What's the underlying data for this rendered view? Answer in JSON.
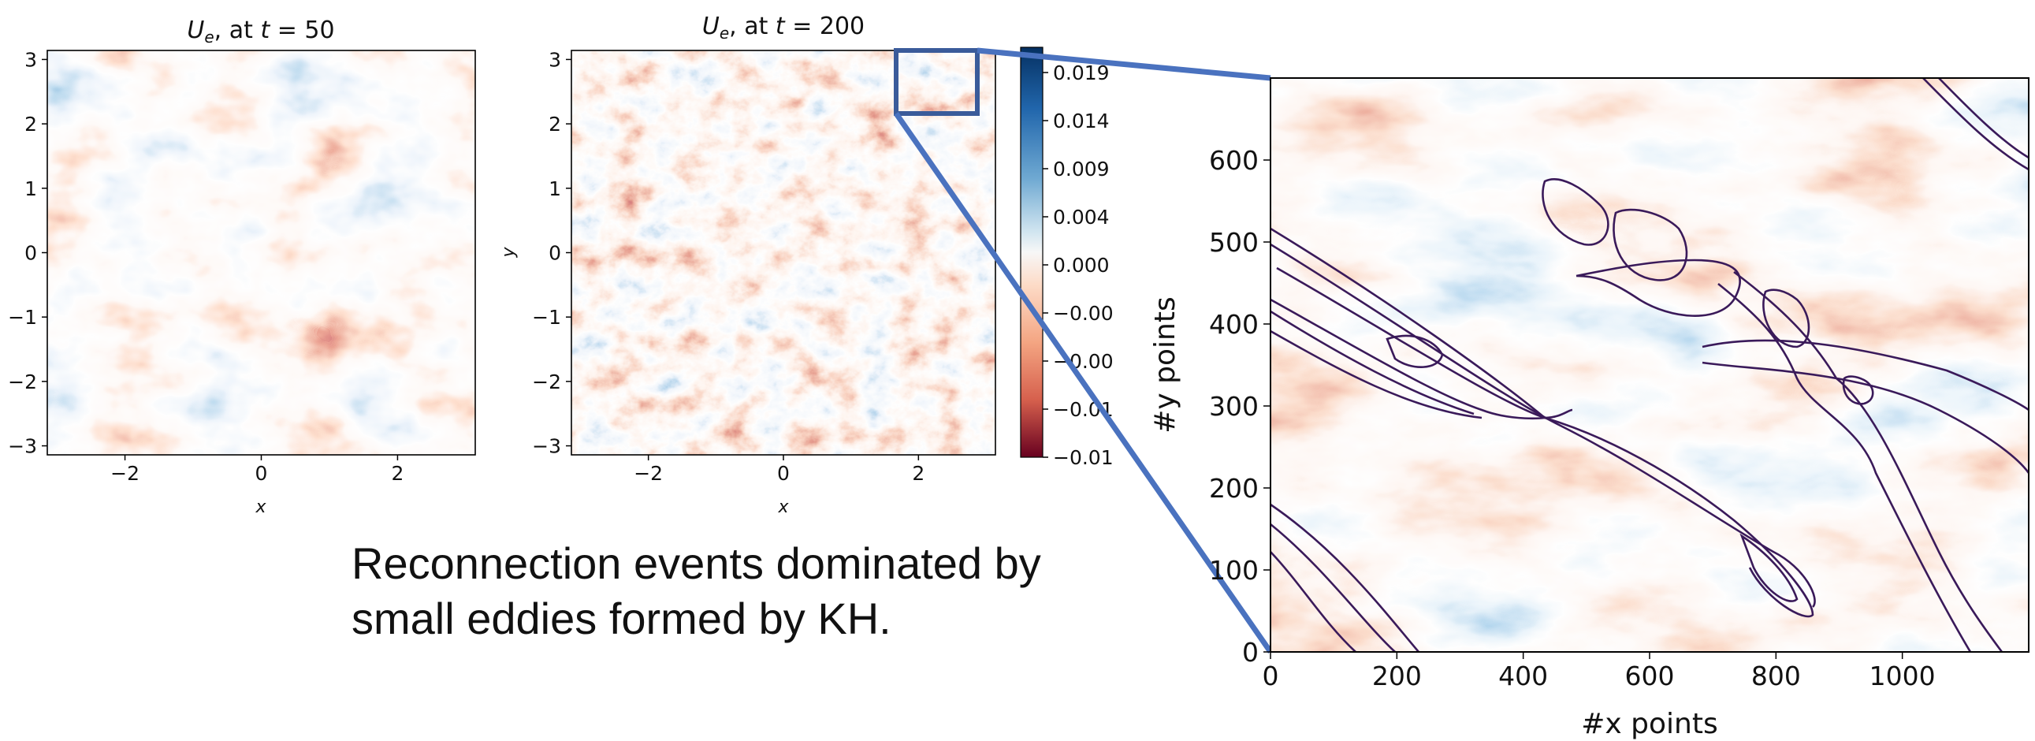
{
  "caption": {
    "line1": "Reconnection events dominated by",
    "line2": "small eddies formed by KH."
  },
  "colors": {
    "red": "#8b0c23",
    "blue": "#1c4c8a",
    "inset_box": "#3a5b9a",
    "connector": "#4a72bf",
    "contour": "#3a1a5a"
  },
  "chart_data": [
    {
      "type": "heatmap",
      "title": "U_e, at t = 50",
      "xlabel": "x",
      "ylabel": "",
      "colormap": "RdBu",
      "xlim": [
        -3.14,
        3.14
      ],
      "ylim": [
        -3.14,
        3.14
      ],
      "xticks": [
        "−2",
        "0",
        "2"
      ],
      "yticks": [
        "3",
        "2",
        "1",
        "0",
        "−1",
        "−2",
        "−3"
      ]
    },
    {
      "type": "heatmap",
      "title": "U_e, at t = 200",
      "xlabel": "x",
      "ylabel": "y",
      "colormap": "RdBu",
      "xlim": [
        -3.14,
        3.14
      ],
      "ylim": [
        -3.14,
        3.14
      ],
      "xticks": [
        "−2",
        "0",
        "2"
      ],
      "yticks": [
        "3",
        "2",
        "1",
        "0",
        "−1",
        "−2",
        "−3"
      ],
      "colorbar_ticks": [
        "0.019",
        "0.014",
        "0.009",
        "0.004",
        "0.000",
        "−0.00",
        "−0.00",
        "−0.01",
        "−0.01"
      ]
    },
    {
      "type": "heatmap",
      "title": "",
      "xlabel": "#x points",
      "ylabel": "#y points",
      "colormap": "RdBu",
      "overlay": "contour lines",
      "xlim": [
        0,
        1200
      ],
      "ylim": [
        0,
        700
      ],
      "xticks": [
        "0",
        "200",
        "400",
        "600",
        "800",
        "1000"
      ],
      "yticks": [
        "0",
        "100",
        "200",
        "300",
        "400",
        "500",
        "600"
      ]
    }
  ]
}
